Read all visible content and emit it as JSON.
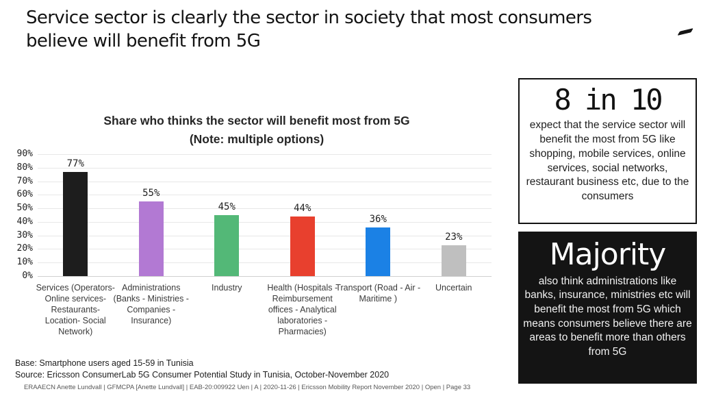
{
  "slide": {
    "title_line1": "Service sector is clearly the sector in society that most consumers",
    "title_line2": "believe will benefit from 5G"
  },
  "chart_data": {
    "type": "bar",
    "title": "Share who thinks the sector will benefit most from 5G",
    "subtitle": "(Note: multiple options)",
    "categories": [
      "Services (Operators-Online services- Restaurants- Location- Social Network)",
      "Administrations (Banks - Ministries - Companies - Insurance)",
      "Industry",
      "Health (Hospitals - Reimbursement offices - Analytical laboratories - Pharmacies)",
      "Transport (Road - Air - Maritime )",
      "Uncertain"
    ],
    "values": [
      77,
      55,
      45,
      44,
      36,
      23
    ],
    "value_labels": [
      "77%",
      "55%",
      "45%",
      "44%",
      "36%",
      "23%"
    ],
    "bar_colors": [
      "#1d1d1d",
      "#b279d3",
      "#53b877",
      "#e8402e",
      "#1b81e5",
      "#bfbfbf"
    ],
    "ylim": [
      0,
      90
    ],
    "ytick_step": 10,
    "ytick_labels": [
      "0%",
      "10%",
      "20%",
      "30%",
      "40%",
      "50%",
      "60%",
      "70%",
      "80%",
      "90%"
    ],
    "grid": true,
    "legend": false
  },
  "callouts": {
    "stat_box": {
      "headline": "8 in 10",
      "body": "expect that the service sector will benefit the most from 5G like shopping, mobile services, online services, social networks, restaurant business etc,  due to the consumers"
    },
    "majority_box": {
      "headline": "Majority",
      "body": "also think administrations  like banks, insurance, ministries etc will benefit the most from 5G which means consumers believe there are areas to benefit more than others from 5G"
    }
  },
  "footnotes": {
    "base": "Base: Smartphone users aged 15-59 in Tunisia",
    "source": "Source: Ericsson ConsumerLab 5G Consumer Potential Study in Tunisia, October-November 2020"
  },
  "footer": {
    "line": "ERAAECN Anette Lundvall  |  GFMCPA [Anette Lundvall]  |  EAB-20:009922 Uen  |  A  |  2020-11-26  |  Ericsson Mobility Report November 2020  |  Open  |  Page 33"
  }
}
